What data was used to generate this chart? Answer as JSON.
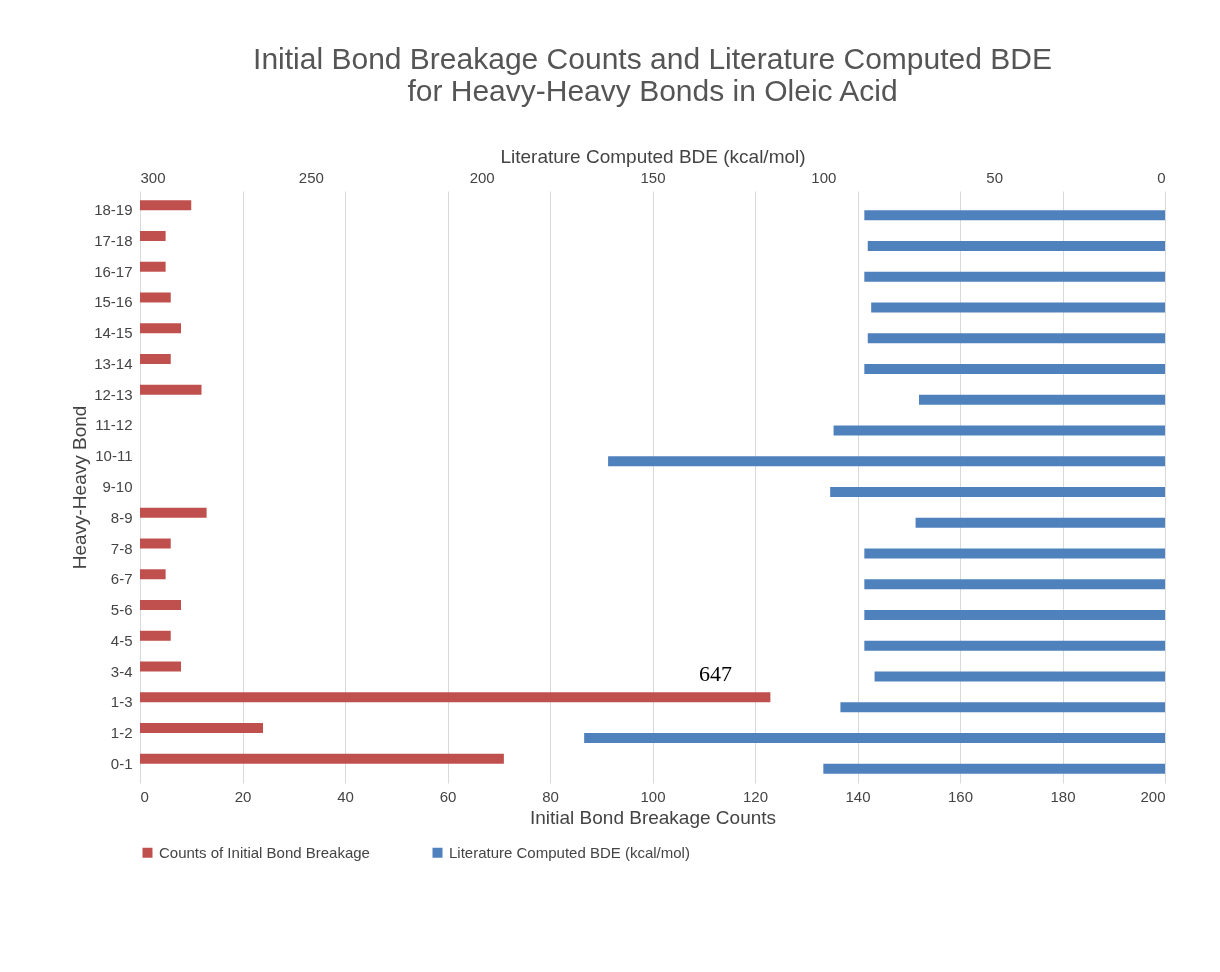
{
  "chart_data": {
    "type": "bar",
    "orientation": "horizontal",
    "title": "Initial Bond Breakage Counts and Literature Computed BDE for Heavy-Heavy Bonds in Oleic Acid",
    "xlabel": "Initial Bond Breakage Counts",
    "ylabel": "Heavy-Heavy Bond",
    "x2label": "Literature Computed BDE (kcal/mol)",
    "categories": [
      "18-19",
      "17-18",
      "16-17",
      "15-16",
      "14-15",
      "13-14",
      "12-13",
      "11-12",
      "10-11",
      "9-10",
      "8-9",
      "7-8",
      "6-7",
      "5-6",
      "4-5",
      "3-4",
      "1-3",
      "1-2",
      "0-1"
    ],
    "series": [
      {
        "name": "Counts of Initial Bond Breakage",
        "color": "#c0504d",
        "values": [
          10,
          5,
          5,
          6,
          8,
          6,
          12,
          null,
          null,
          null,
          13,
          6,
          5,
          8,
          6,
          8,
          123,
          24,
          71
        ]
      },
      {
        "name": "Literature Computed BDE (kcal/mol)",
        "color": "#4f81bd",
        "axis": "x2",
        "values": [
          88,
          87,
          88,
          86,
          87,
          88,
          72,
          97,
          163,
          98,
          73,
          88,
          88,
          88,
          88,
          85,
          95,
          170,
          100
        ]
      }
    ],
    "xlim": [
      0,
      200
    ],
    "xticks": [
      0,
      20,
      40,
      60,
      80,
      100,
      120,
      140,
      160,
      180,
      200
    ],
    "x2lim": [
      300,
      0
    ],
    "x2ticks": [
      300,
      250,
      200,
      150,
      100,
      50,
      0
    ],
    "grid": "x",
    "legend": "bottom",
    "annotations": [
      {
        "text": "647",
        "x": 123,
        "y": "1-3"
      }
    ]
  }
}
